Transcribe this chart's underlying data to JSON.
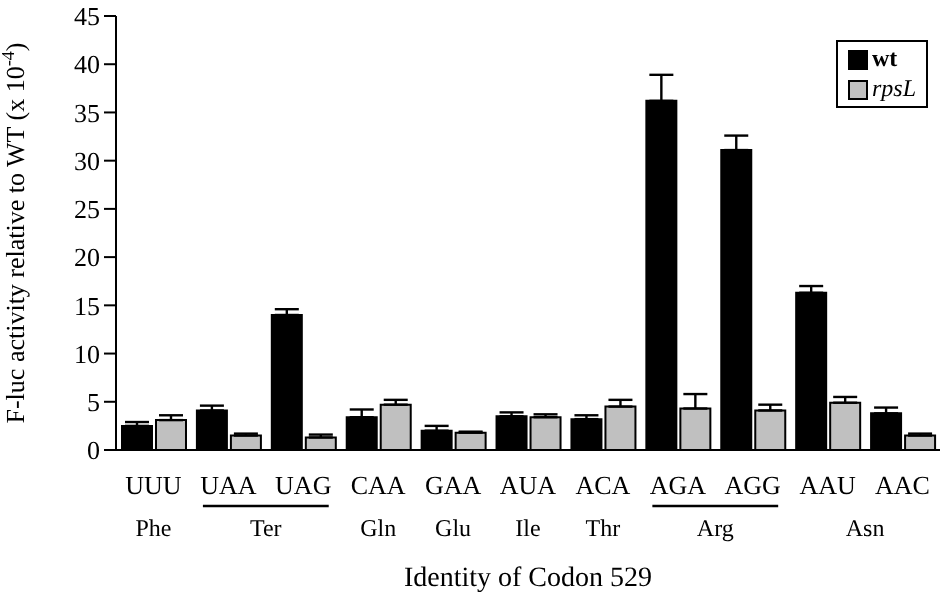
{
  "chart_data": {
    "type": "bar",
    "xlabel": "Identity of Codon 529",
    "ylabel": "F-luc activity relative to WT (x 10$^{-4}$)",
    "categories": [
      "UUU",
      "UAA",
      "UAG",
      "CAA",
      "GAA",
      "AUA",
      "ACA",
      "AGA",
      "AGG",
      "AAU",
      "AAC"
    ],
    "series": [
      {
        "name": "wt",
        "color": "#000000",
        "values": [
          2.5,
          4.1,
          14,
          3.4,
          2.0,
          3.5,
          3.2,
          36.2,
          31.1,
          16.3,
          3.8
        ],
        "errors": [
          [
            2.5,
            2.9
          ],
          [
            4.1,
            4.6
          ],
          [
            14,
            14.6
          ],
          [
            3.4,
            4.2
          ],
          [
            2.0,
            2.5
          ],
          [
            3.5,
            3.9
          ],
          [
            3.2,
            3.6
          ],
          [
            36.2,
            38.9
          ],
          [
            31.1,
            32.6
          ],
          [
            16.3,
            17.0
          ],
          [
            3.8,
            4.4
          ]
        ]
      },
      {
        "name": "rpsL",
        "color": "#c0c0c0",
        "values": [
          3.1,
          1.5,
          1.3,
          4.7,
          1.8,
          3.4,
          4.5,
          4.3,
          4.1,
          4.9,
          1.5
        ],
        "errors": [
          [
            3.1,
            3.6
          ],
          [
            1.5,
            1.7
          ],
          [
            1.3,
            1.6
          ],
          [
            4.7,
            5.2
          ],
          [
            1.8,
            1.9
          ],
          [
            3.4,
            3.7
          ],
          [
            4.5,
            5.2
          ],
          [
            4.3,
            5.8
          ],
          [
            4.1,
            4.7
          ],
          [
            4.9,
            5.5
          ],
          [
            1.5,
            1.7
          ]
        ]
      }
    ],
    "annotations": [
      "Phe",
      "Ter",
      "Gln",
      "Glu",
      "Ile",
      "Thr",
      "Arg",
      "Asn"
    ],
    "ylim": [
      0,
      45
    ],
    "yticks": [
      0,
      5,
      10,
      15,
      20,
      25,
      30,
      35,
      40,
      45
    ],
    "grid": false,
    "legend": "top right"
  }
}
